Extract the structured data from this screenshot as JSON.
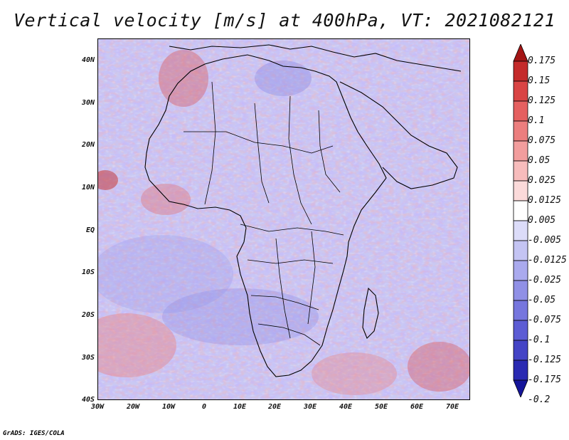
{
  "title": "Vertical velocity [m/s] at 400hPa, VT: 2021082121",
  "footer": "GrADS: IGES/COLA",
  "map": {
    "lat_ticks": [
      "40N",
      "30N",
      "20N",
      "10N",
      "EQ",
      "10S",
      "20S",
      "30S",
      "40S"
    ],
    "lon_ticks": [
      "30W",
      "20W",
      "10W",
      "0",
      "10E",
      "20E",
      "30E",
      "40E",
      "50E",
      "60E",
      "70E"
    ]
  },
  "colorbar": {
    "levels": [
      "0.175",
      "0.15",
      "0.125",
      "0.1",
      "0.075",
      "0.05",
      "0.025",
      "0.0125",
      "0.005",
      "-0.005",
      "-0.0125",
      "-0.025",
      "-0.05",
      "-0.075",
      "-0.1",
      "-0.125",
      "-0.175",
      "-0.2"
    ],
    "colors": [
      "#a31515",
      "#c42a2a",
      "#d94444",
      "#e56060",
      "#ec7e7e",
      "#f29d9d",
      "#f7bcbc",
      "#fbdada",
      "#ffffff",
      "#dcdcf9",
      "#c4c4f3",
      "#aaaaee",
      "#9090e6",
      "#7676de",
      "#5c5cd4",
      "#4444c6",
      "#2a2ab2",
      "#15159a"
    ]
  }
}
